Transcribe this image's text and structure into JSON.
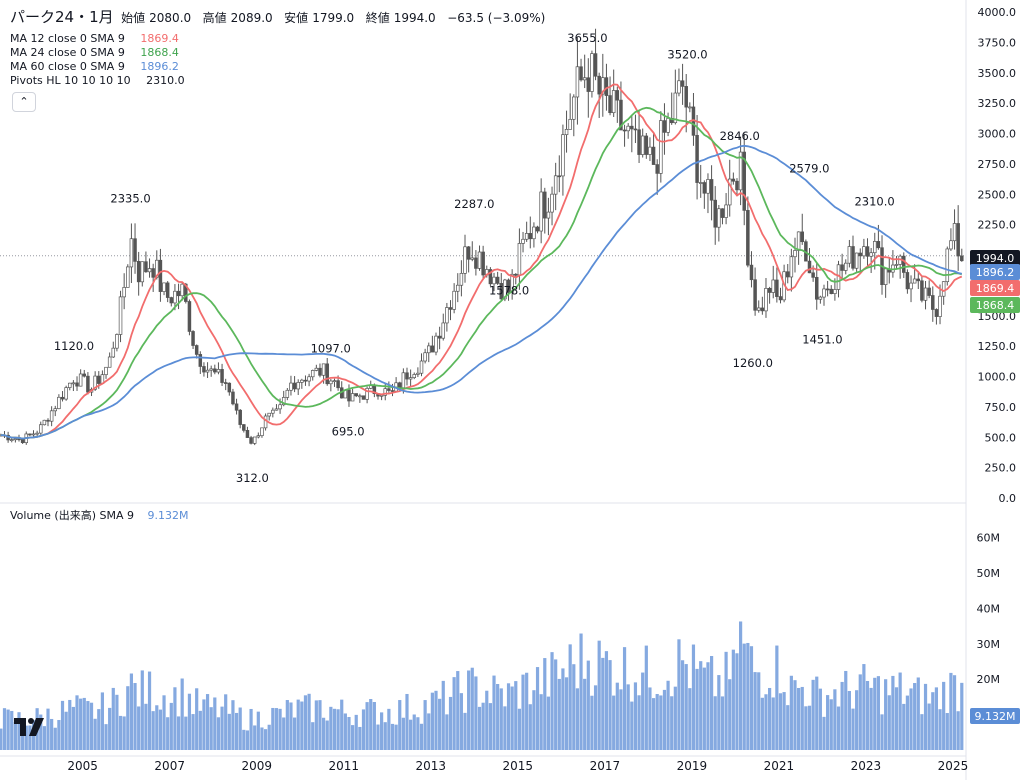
{
  "header": {
    "symbol": "パーク24・1月",
    "ohlc": [
      {
        "label": "始値",
        "value": "2080.0"
      },
      {
        "label": "高値",
        "value": "2089.0"
      },
      {
        "label": "安値",
        "value": "1799.0"
      },
      {
        "label": "終値",
        "value": "1994.0"
      }
    ],
    "change": "−63.5 (−3.09%)"
  },
  "indicators": [
    {
      "label": "MA 12 close 0 SMA 9",
      "value": "1869.4",
      "color": "#f26d6d"
    },
    {
      "label": "MA 24 close 0 SMA 9",
      "value": "1868.4",
      "color": "#5cb85c"
    },
    {
      "label": "MA 60 close 0 SMA 9",
      "value": "1896.2",
      "color": "#5b8dd6"
    },
    {
      "label": "Pivots HL 10 10 10 10",
      "value": "2310.0",
      "color": "#131722"
    }
  ],
  "volume_legend": {
    "label": "Volume (出来高)  SMA 9",
    "value": "9.132M",
    "color": "#5b8dd6"
  },
  "collapse_icon": "chevron-up-icon",
  "chart_data": {
    "type": "candlestick",
    "price_axis": {
      "ticks": [
        0,
        250,
        500,
        750,
        1000,
        1250,
        1500,
        1750,
        2000,
        2250,
        2500,
        2750,
        3000,
        3250,
        3500,
        3750,
        4000
      ],
      "labels": [
        "0.0",
        "250.0",
        "500.0",
        "750.0",
        "1000.0",
        "1250.0",
        "1500.0",
        "1750.0",
        "2000.0",
        "2250.0",
        "2500.0",
        "2750.0",
        "3000.0",
        "3250.0",
        "3500.0",
        "3750.0",
        "4000.0"
      ]
    },
    "volume_axis": {
      "ticks": [
        20,
        30,
        40,
        50,
        60
      ],
      "labels": [
        "20M",
        "30M",
        "40M",
        "50M",
        "60M"
      ]
    },
    "time_axis": {
      "ticks": [
        2005,
        2007,
        2009,
        2011,
        2013,
        2015,
        2017,
        2019,
        2021,
        2023,
        2025
      ],
      "labels": [
        "2005",
        "2007",
        "2009",
        "2011",
        "2013",
        "2015",
        "2017",
        "2019",
        "2021",
        "2023",
        "2025"
      ],
      "range": [
        2003.1,
        2025.3
      ]
    },
    "last_price": {
      "value": 1994.0,
      "label": "1994.0"
    },
    "price_tags": [
      {
        "value": 1994.0,
        "label": "1994.0",
        "color": "#131722"
      },
      {
        "value": 1896.2,
        "label": "1896.2",
        "color": "#5b8dd6"
      },
      {
        "value": 1869.4,
        "label": "1869.4",
        "color": "#f26d6d"
      },
      {
        "value": 1868.4,
        "label": "1868.4",
        "color": "#5cb85c"
      }
    ],
    "volume_tag": {
      "label": "9.132M",
      "color": "#5b8dd6"
    },
    "pivots": [
      {
        "t": 2004.8,
        "v": 1120,
        "label": "1120.0",
        "pos": "above"
      },
      {
        "t": 2006.1,
        "v": 2335,
        "label": "2335.0",
        "pos": "above"
      },
      {
        "t": 2008.9,
        "v": 312,
        "label": "312.0",
        "pos": "below"
      },
      {
        "t": 2010.7,
        "v": 1097,
        "label": "1097.0",
        "pos": "above"
      },
      {
        "t": 2011.1,
        "v": 695,
        "label": "695.0",
        "pos": "below"
      },
      {
        "t": 2014.0,
        "v": 2287,
        "label": "2287.0",
        "pos": "above"
      },
      {
        "t": 2014.8,
        "v": 1578,
        "label": "1578.0",
        "pos": "above"
      },
      {
        "t": 2016.6,
        "v": 3655,
        "label": "3655.0",
        "pos": "above"
      },
      {
        "t": 2018.9,
        "v": 3520,
        "label": "3520.0",
        "pos": "above"
      },
      {
        "t": 2020.1,
        "v": 2846,
        "label": "2846.0",
        "pos": "above"
      },
      {
        "t": 2020.4,
        "v": 1260,
        "label": "1260.0",
        "pos": "below"
      },
      {
        "t": 2021.7,
        "v": 2579,
        "label": "2579.0",
        "pos": "above"
      },
      {
        "t": 2022.0,
        "v": 1451,
        "label": "1451.0",
        "pos": "below"
      },
      {
        "t": 2023.2,
        "v": 2310,
        "label": "2310.0",
        "pos": "above"
      }
    ],
    "price_path": [
      [
        2003.1,
        520
      ],
      [
        2003.6,
        480
      ],
      [
        2004.0,
        560
      ],
      [
        2004.4,
        780
      ],
      [
        2004.8,
        1000
      ],
      [
        2005.2,
        900
      ],
      [
        2005.6,
        1100
      ],
      [
        2005.9,
        1600
      ],
      [
        2006.1,
        2150
      ],
      [
        2006.3,
        1850
      ],
      [
        2006.6,
        1950
      ],
      [
        2006.9,
        1650
      ],
      [
        2007.3,
        1700
      ],
      [
        2007.6,
        1200
      ],
      [
        2007.9,
        1050
      ],
      [
        2008.3,
        950
      ],
      [
        2008.6,
        620
      ],
      [
        2008.9,
        450
      ],
      [
        2009.2,
        650
      ],
      [
        2009.5,
        700
      ],
      [
        2009.8,
        950
      ],
      [
        2010.1,
        1000
      ],
      [
        2010.5,
        1050
      ],
      [
        2010.8,
        950
      ],
      [
        2011.1,
        800
      ],
      [
        2011.4,
        850
      ],
      [
        2011.8,
        900
      ],
      [
        2012.1,
        850
      ],
      [
        2012.5,
        1050
      ],
      [
        2012.9,
        1150
      ],
      [
        2013.2,
        1400
      ],
      [
        2013.5,
        1700
      ],
      [
        2013.9,
        2100
      ],
      [
        2014.2,
        1950
      ],
      [
        2014.5,
        1800
      ],
      [
        2014.8,
        1700
      ],
      [
        2015.1,
        2050
      ],
      [
        2015.4,
        2300
      ],
      [
        2015.7,
        2500
      ],
      [
        2016.0,
        2900
      ],
      [
        2016.3,
        3300
      ],
      [
        2016.6,
        3550
      ],
      [
        2016.9,
        3300
      ],
      [
        2017.2,
        3150
      ],
      [
        2017.5,
        3000
      ],
      [
        2017.8,
        2800
      ],
      [
        2018.1,
        2750
      ],
      [
        2018.5,
        3100
      ],
      [
        2018.8,
        3400
      ],
      [
        2019.0,
        2950
      ],
      [
        2019.3,
        2500
      ],
      [
        2019.6,
        2300
      ],
      [
        2019.9,
        2650
      ],
      [
        2020.1,
        2750
      ],
      [
        2020.3,
        2000
      ],
      [
        2020.5,
        1500
      ],
      [
        2020.8,
        1750
      ],
      [
        2021.0,
        1600
      ],
      [
        2021.3,
        2050
      ],
      [
        2021.6,
        2100
      ],
      [
        2021.9,
        1650
      ],
      [
        2022.2,
        1800
      ],
      [
        2022.5,
        1900
      ],
      [
        2022.8,
        2050
      ],
      [
        2023.1,
        2150
      ],
      [
        2023.4,
        1850
      ],
      [
        2023.7,
        2000
      ],
      [
        2024.0,
        1750
      ],
      [
        2024.3,
        1650
      ],
      [
        2024.6,
        1550
      ],
      [
        2024.8,
        1900
      ],
      [
        2025.0,
        2150
      ],
      [
        2025.2,
        1994
      ]
    ]
  }
}
